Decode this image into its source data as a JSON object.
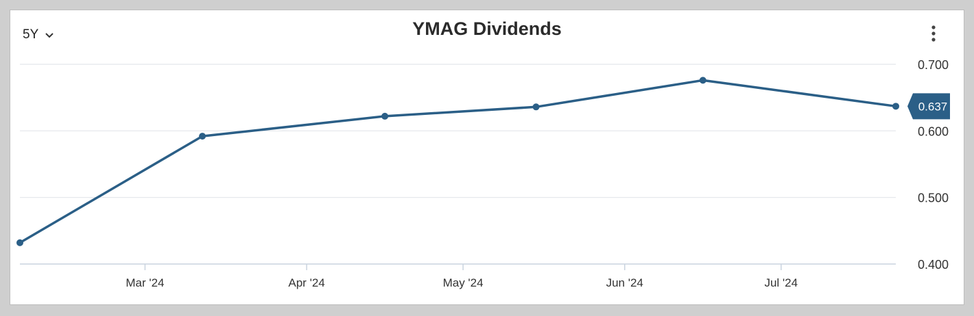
{
  "header": {
    "range_label": "5Y",
    "title": "YMAG Dividends"
  },
  "icons": {
    "range_dropdown": "chevron-down-icon",
    "menu": "more-vertical-icon"
  },
  "colors": {
    "line": "#2b5f87",
    "badge": "#2b5f87",
    "grid": "#e3e6ea",
    "axis": "#c9d3df"
  },
  "chart_data": {
    "type": "line",
    "title": "YMAG Dividends",
    "xlabel": "",
    "ylabel": "",
    "x_axis": "date",
    "xlim": [
      "2024-02-06",
      "2024-07-23"
    ],
    "ylim": [
      0.4,
      0.7
    ],
    "grid": true,
    "legend": "none",
    "x_ticks": [
      {
        "date": "2024-03-01",
        "label": "Mar '24"
      },
      {
        "date": "2024-04-01",
        "label": "Apr '24"
      },
      {
        "date": "2024-05-01",
        "label": "May '24"
      },
      {
        "date": "2024-06-01",
        "label": "Jun '24"
      },
      {
        "date": "2024-07-01",
        "label": "Jul '24"
      }
    ],
    "y_ticks": [
      {
        "value": 0.4,
        "label": "0.400"
      },
      {
        "value": 0.5,
        "label": "0.500"
      },
      {
        "value": 0.6,
        "label": "0.600"
      },
      {
        "value": 0.7,
        "label": "0.700"
      }
    ],
    "series": [
      {
        "x": [
          "2024-02-06",
          "2024-03-12",
          "2024-04-16",
          "2024-05-15",
          "2024-06-16",
          "2024-07-23"
        ],
        "values": [
          0.432,
          0.592,
          0.622,
          0.636,
          0.676,
          0.637
        ]
      }
    ],
    "last_value_label": "0.637"
  }
}
